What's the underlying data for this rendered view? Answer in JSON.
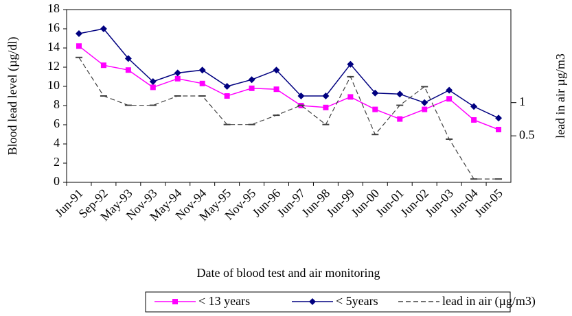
{
  "chart_data": {
    "type": "line",
    "y_label": "Blood lead level (µg/dl)",
    "y2_label": "lead in air µg/m3",
    "x_label": "Date of blood test and air monitoring",
    "categories": [
      "Jun-91",
      "Sep-92",
      "May-93",
      "Nov-93",
      "May-94",
      "Nov-94",
      "May-95",
      "Nov-95",
      "Jun-96",
      "Jun-97",
      "Jun-98",
      "Jun-99",
      "Jun-00",
      "Jun-01",
      "Jun-02",
      "Jun-03",
      "Jun-04",
      "Jun-05"
    ],
    "series": [
      {
        "name": "< 13 years",
        "color": "#ff00ff",
        "marker": "square",
        "values": [
          14.2,
          12.2,
          11.7,
          9.9,
          10.8,
          10.3,
          9.0,
          9.8,
          9.7,
          8.0,
          7.8,
          8.9,
          7.6,
          6.6,
          7.6,
          8.7,
          6.5,
          5.5
        ]
      },
      {
        "name": "< 5years",
        "color": "#000080",
        "marker": "diamond",
        "values": [
          15.5,
          16.0,
          12.9,
          10.5,
          11.4,
          11.7,
          10.0,
          10.7,
          11.7,
          9.0,
          9.0,
          12.3,
          9.3,
          9.2,
          8.3,
          9.6,
          7.9,
          6.7
        ]
      },
      {
        "name": "lead in air (µg/m3)",
        "color": "#404040",
        "marker": "dash",
        "dashed": true,
        "axis": "y2",
        "values": [
          1.68,
          1.1,
          0.96,
          0.96,
          1.1,
          1.1,
          0.67,
          0.67,
          0.81,
          0.96,
          0.67,
          1.39,
          0.52,
          0.96,
          1.24,
          0.45,
          -0.15,
          -0.15
        ]
      }
    ],
    "ylim": [
      0,
      18
    ],
    "yticks": [
      0,
      2,
      4,
      6,
      8,
      10,
      12,
      14,
      16,
      18
    ],
    "y2lim": [
      -0.2,
      2.4
    ],
    "y2ticks": [
      0.5,
      1
    ],
    "legend": "bottom"
  }
}
